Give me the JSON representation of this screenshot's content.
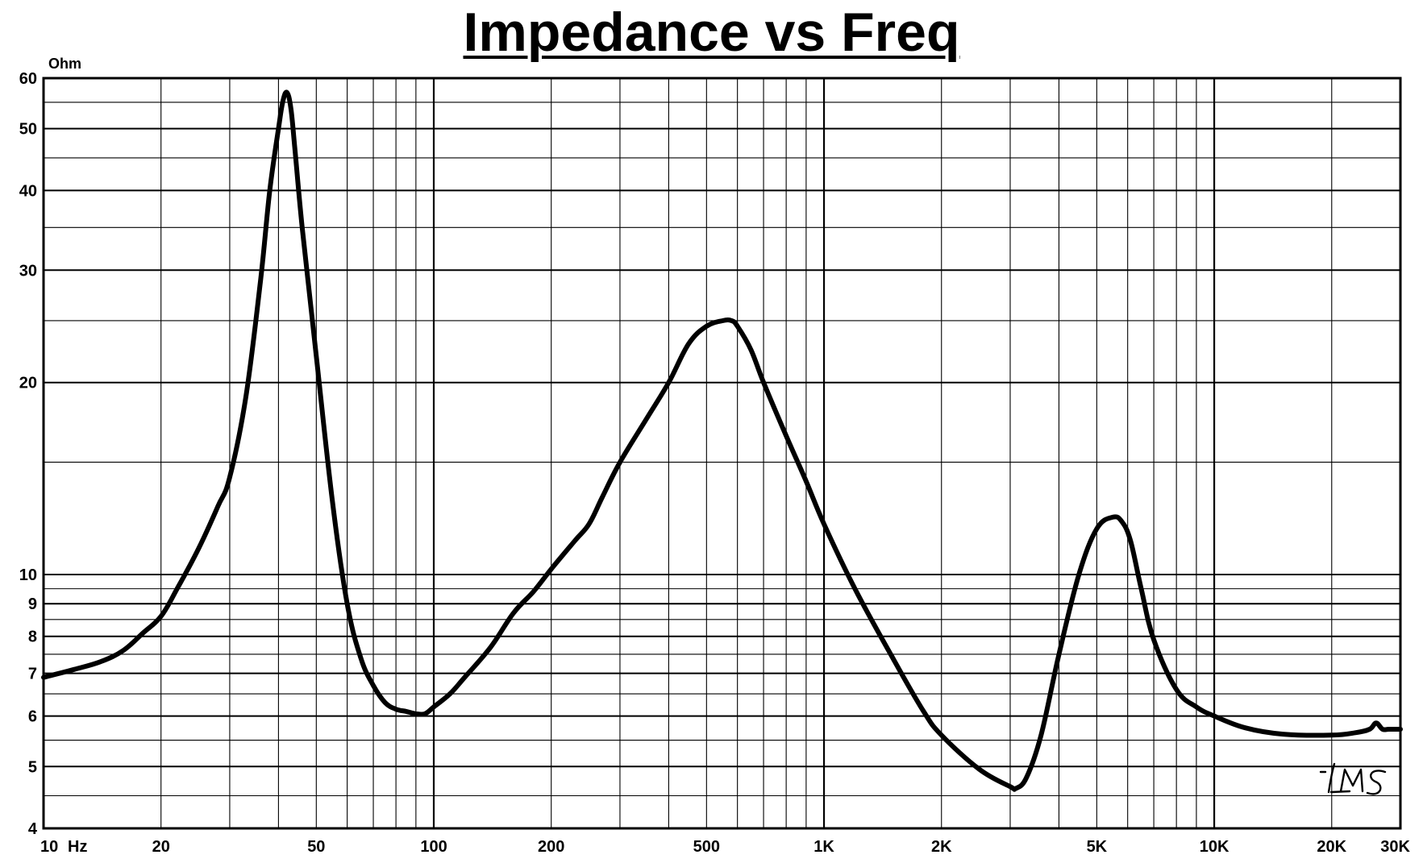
{
  "chart_data": {
    "type": "line",
    "title": "Impedance vs Freq",
    "ylabel": "Ohm",
    "xunit": "Hz",
    "xscale": "log",
    "yscale": "log",
    "xlim": [
      10,
      30000
    ],
    "ylim": [
      4,
      60
    ],
    "grid": true,
    "x_tick_labels": [
      {
        "value": 10,
        "label": "10"
      },
      {
        "value": 20,
        "label": "20"
      },
      {
        "value": 50,
        "label": "50"
      },
      {
        "value": 100,
        "label": "100"
      },
      {
        "value": 200,
        "label": "200"
      },
      {
        "value": 500,
        "label": "500"
      },
      {
        "value": 1000,
        "label": "1K"
      },
      {
        "value": 2000,
        "label": "2K"
      },
      {
        "value": 5000,
        "label": "5K"
      },
      {
        "value": 10000,
        "label": "10K"
      },
      {
        "value": 20000,
        "label": "20K"
      },
      {
        "value": 30000,
        "label": "30K"
      }
    ],
    "y_tick_labels": [
      {
        "value": 4,
        "label": "4"
      },
      {
        "value": 5,
        "label": "5"
      },
      {
        "value": 6,
        "label": "6"
      },
      {
        "value": 7,
        "label": "7"
      },
      {
        "value": 8,
        "label": "8"
      },
      {
        "value": 9,
        "label": "9"
      },
      {
        "value": 10,
        "label": "10"
      },
      {
        "value": 20,
        "label": "20"
      },
      {
        "value": 30,
        "label": "30"
      },
      {
        "value": 40,
        "label": "40"
      },
      {
        "value": 50,
        "label": "50"
      },
      {
        "value": 60,
        "label": "60"
      }
    ],
    "series": [
      {
        "color": "#000000",
        "x": [
          10,
          12,
          14,
          16,
          18,
          20,
          22,
          25,
          28,
          30,
          33,
          36,
          38,
          40,
          41,
          42,
          43,
          44,
          46,
          50,
          55,
          60,
          65,
          70,
          75,
          80,
          85,
          90,
          95,
          100,
          110,
          120,
          140,
          160,
          180,
          200,
          230,
          250,
          270,
          300,
          350,
          400,
          450,
          500,
          550,
          580,
          600,
          650,
          700,
          800,
          900,
          1000,
          1200,
          1500,
          1800,
          2000,
          2500,
          3000,
          3100,
          3300,
          3600,
          4000,
          4500,
          5000,
          5500,
          5800,
          6100,
          6500,
          7000,
          8000,
          9000,
          10000,
          12000,
          15000,
          20000,
          23000,
          25000,
          26000,
          27000,
          28000,
          30000
        ],
        "y": [
          6.9,
          7.1,
          7.3,
          7.6,
          8.1,
          8.6,
          9.5,
          11.0,
          12.8,
          14.2,
          19.0,
          29.0,
          40.0,
          50.0,
          55.0,
          57.0,
          54.0,
          47.0,
          35.0,
          22.0,
          13.0,
          9.0,
          7.4,
          6.7,
          6.3,
          6.15,
          6.1,
          6.05,
          6.05,
          6.2,
          6.5,
          6.9,
          7.7,
          8.7,
          9.4,
          10.2,
          11.3,
          12.0,
          13.2,
          15.0,
          17.5,
          20.0,
          23.0,
          24.5,
          25.0,
          25.0,
          24.5,
          22.5,
          20.0,
          16.5,
          14.0,
          12.0,
          9.5,
          7.4,
          6.1,
          5.6,
          4.95,
          4.65,
          4.62,
          4.8,
          5.6,
          7.5,
          10.0,
          11.8,
          12.3,
          12.1,
          11.3,
          9.5,
          7.9,
          6.6,
          6.2,
          6.0,
          5.75,
          5.62,
          5.6,
          5.65,
          5.72,
          5.85,
          5.72,
          5.72,
          5.72
        ]
      }
    ]
  },
  "watermark": "LMS"
}
